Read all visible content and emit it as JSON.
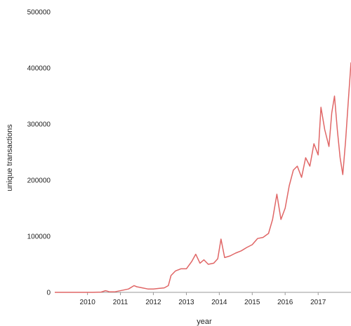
{
  "chart_data": {
    "type": "line",
    "xlabel": "year",
    "ylabel": "unique transactions",
    "ylim": [
      0,
      500000
    ],
    "y_ticks": [
      0,
      100000,
      200000,
      300000,
      400000,
      500000
    ],
    "y_tick_labels": [
      "0",
      "100000",
      "200000",
      "300000",
      "400000",
      "500000"
    ],
    "xlim": [
      "2009-01-03",
      "2017-12-31"
    ],
    "x_ticks": [
      "2010-01-01",
      "2011-01-01",
      "2012-01-01",
      "2013-01-01",
      "2014-01-01",
      "2015-01-01",
      "2016-01-01",
      "2017-01-01"
    ],
    "x_tick_labels": [
      "2010",
      "2011",
      "2012",
      "2013",
      "2014",
      "2015",
      "2016",
      "2017"
    ],
    "grid": false,
    "legend": "none",
    "line_color": "#e06666",
    "axis_color": "#999999",
    "series": [
      {
        "x": [
          "2009-01-03",
          "2009-06-01",
          "2009-12-01",
          "2010-03-01",
          "2010-06-01",
          "2010-07-20",
          "2010-09-01",
          "2010-11-01",
          "2011-02-01",
          "2011-04-01",
          "2011-06-01",
          "2011-07-01",
          "2011-09-01",
          "2011-11-01",
          "2012-01-01",
          "2012-03-01",
          "2012-05-01",
          "2012-06-15",
          "2012-07-15",
          "2012-09-01",
          "2012-11-01",
          "2013-01-01",
          "2013-03-01",
          "2013-04-15",
          "2013-06-01",
          "2013-07-15",
          "2013-09-01",
          "2013-11-01",
          "2013-12-15",
          "2014-01-20",
          "2014-03-01",
          "2014-05-01",
          "2014-07-01",
          "2014-09-01",
          "2014-11-01",
          "2015-01-01",
          "2015-03-01",
          "2015-05-01",
          "2015-07-01",
          "2015-08-15",
          "2015-10-01",
          "2015-11-15",
          "2016-01-01",
          "2016-02-15",
          "2016-04-01",
          "2016-05-15",
          "2016-07-01",
          "2016-08-15",
          "2016-10-01",
          "2016-11-15",
          "2017-01-01",
          "2017-02-01",
          "2017-03-15",
          "2017-05-01",
          "2017-06-01",
          "2017-07-01",
          "2017-08-01",
          "2017-09-01",
          "2017-10-01",
          "2017-11-01",
          "2017-12-01",
          "2017-12-31"
        ],
        "values": [
          0,
          0,
          0,
          0,
          500,
          3000,
          1000,
          1000,
          4000,
          6000,
          12000,
          10000,
          8000,
          6000,
          6000,
          7000,
          8000,
          12000,
          30000,
          38000,
          42000,
          42000,
          55000,
          68000,
          52000,
          58000,
          50000,
          52000,
          60000,
          95000,
          62000,
          65000,
          70000,
          74000,
          80000,
          85000,
          96000,
          98000,
          105000,
          130000,
          175000,
          130000,
          150000,
          190000,
          218000,
          225000,
          205000,
          240000,
          225000,
          265000,
          245000,
          330000,
          290000,
          260000,
          320000,
          350000,
          290000,
          240000,
          210000,
          270000,
          340000,
          410000
        ]
      }
    ]
  }
}
